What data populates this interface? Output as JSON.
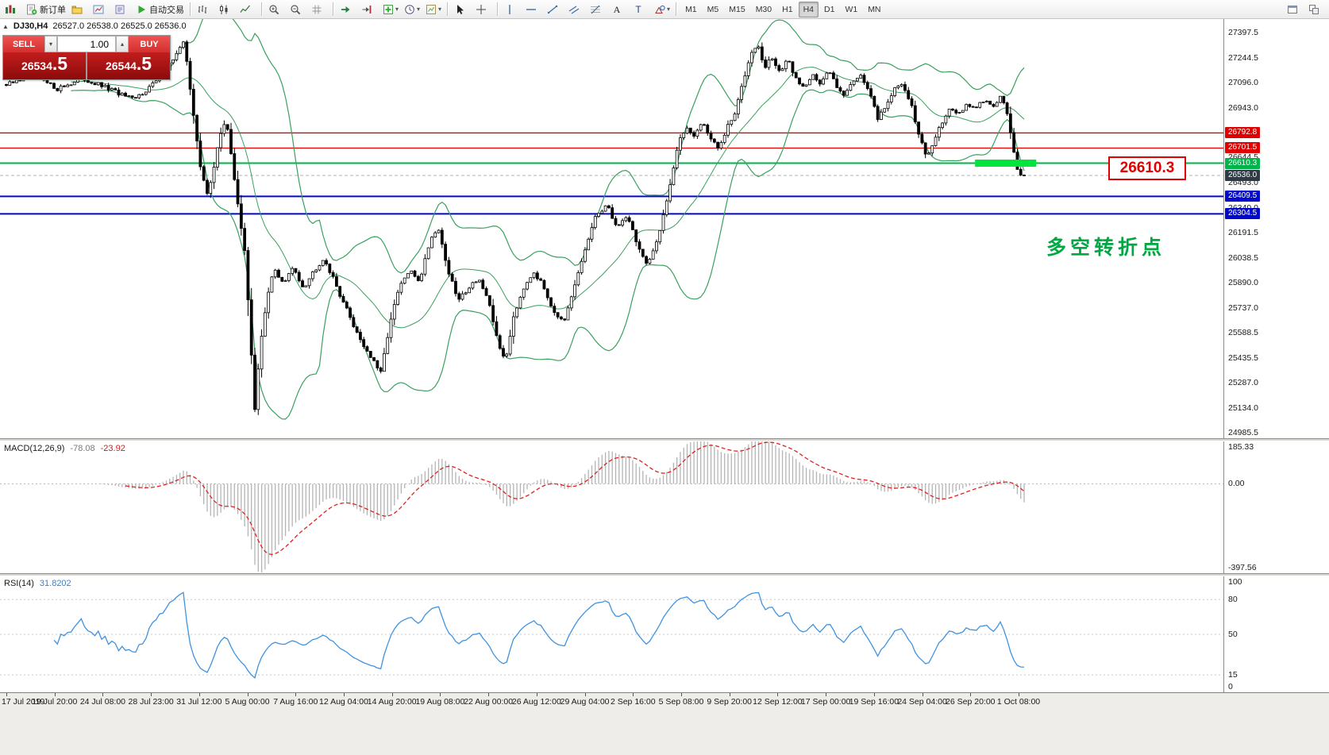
{
  "colors": {
    "candle": "#000000",
    "bollinger": "#3aa05e",
    "macd_hist": "#b4b4b4",
    "macd_signal": "#e02020",
    "rsi_line": "#3f93e0",
    "red_level": "#e00000",
    "green_level": "#00b44a",
    "blue_level": "#0008cc",
    "highlight_green": "#00e53c",
    "current_badge_bg": "#2e3a46",
    "accent_red": "#d32f2f"
  },
  "toolbar": {
    "items": [
      {
        "type": "icon",
        "icon": "new-chart",
        "name": "new-chart-button"
      },
      {
        "type": "icon",
        "icon": "new-order",
        "name": "new-order-button",
        "label": "新订单"
      },
      {
        "type": "icon",
        "icon": "profiles",
        "name": "profiles-button"
      },
      {
        "type": "icon",
        "icon": "market-watch",
        "name": "market-watch-button"
      },
      {
        "type": "icon",
        "icon": "navigator",
        "name": "navigator-button"
      },
      {
        "type": "icon",
        "icon": "autotrade",
        "name": "autotrade-button",
        "label": "自动交易"
      },
      {
        "type": "sep"
      },
      {
        "type": "icon",
        "icon": "bars",
        "name": "bar-chart-button"
      },
      {
        "type": "icon",
        "icon": "candles",
        "name": "candlestick-chart-button"
      },
      {
        "type": "icon",
        "icon": "linechart",
        "name": "line-chart-button"
      },
      {
        "type": "sep"
      },
      {
        "type": "icon",
        "icon": "zoom-in",
        "name": "zoom-in-button"
      },
      {
        "type": "icon",
        "icon": "zoom-out",
        "name": "zoom-out-button"
      },
      {
        "type": "icon",
        "icon": "grid",
        "name": "grid-button"
      },
      {
        "type": "sep"
      },
      {
        "type": "icon",
        "icon": "autoscroll",
        "name": "auto-scroll-button"
      },
      {
        "type": "icon",
        "icon": "shift",
        "name": "chart-shift-button"
      },
      {
        "type": "icon",
        "icon": "indicators",
        "name": "indicators-button",
        "caret": true
      },
      {
        "type": "icon",
        "icon": "clock",
        "name": "periods-button",
        "caret": true
      },
      {
        "type": "icon",
        "icon": "template",
        "name": "templates-button",
        "caret": true
      },
      {
        "type": "sep"
      },
      {
        "type": "icon",
        "icon": "cursor",
        "name": "cursor-tool-button"
      },
      {
        "type": "icon",
        "icon": "crosshair",
        "name": "crosshair-tool-button"
      },
      {
        "type": "sep"
      },
      {
        "type": "icon",
        "icon": "vline",
        "name": "vertical-line-tool"
      },
      {
        "type": "icon",
        "icon": "hline",
        "name": "horizontal-line-tool"
      },
      {
        "type": "icon",
        "icon": "tline",
        "name": "trendline-tool"
      },
      {
        "type": "icon",
        "icon": "channel",
        "name": "channel-tool"
      },
      {
        "type": "icon",
        "icon": "fibo",
        "name": "fibonacci-tool"
      },
      {
        "type": "icon",
        "icon": "text",
        "name": "text-tool"
      },
      {
        "type": "icon",
        "icon": "label",
        "name": "label-tool"
      },
      {
        "type": "icon",
        "icon": "shapes",
        "name": "shapes-tool",
        "caret": true
      },
      {
        "type": "sep"
      },
      {
        "type": "tf",
        "label": "M1",
        "name": "timeframe-m1"
      },
      {
        "type": "tf",
        "label": "M5",
        "name": "timeframe-m5"
      },
      {
        "type": "tf",
        "label": "M15",
        "name": "timeframe-m15"
      },
      {
        "type": "tf",
        "label": "M30",
        "name": "timeframe-m30"
      },
      {
        "type": "tf",
        "label": "H1",
        "name": "timeframe-h1"
      },
      {
        "type": "tf",
        "label": "H4",
        "name": "timeframe-h4",
        "active": true
      },
      {
        "type": "tf",
        "label": "D1",
        "name": "timeframe-d1"
      },
      {
        "type": "tf",
        "label": "W1",
        "name": "timeframe-w1"
      },
      {
        "type": "tf",
        "label": "MN",
        "name": "timeframe-mn"
      },
      {
        "type": "spacer"
      },
      {
        "type": "icon",
        "icon": "win-a",
        "name": "toolbar-extra-1"
      },
      {
        "type": "icon",
        "icon": "win-b",
        "name": "toolbar-extra-2"
      }
    ]
  },
  "symbol_bar": {
    "expand_icon": "▲",
    "title": "DJ30,H4",
    "ohlc": "26527.0 26538.0 26525.0 26536.0"
  },
  "trade_panel": {
    "sell_label": "SELL",
    "buy_label": "BUY",
    "volume": "1.00",
    "vol_down_icon": "▾",
    "vol_up_icon": "▴",
    "sell_price_main": "26534",
    "sell_price_frac": ".5",
    "buy_price_main": "26544",
    "buy_price_frac": ".5"
  },
  "callout": {
    "text": "26610.3"
  },
  "annotation": {
    "text": "多空转折点"
  },
  "price_axis": {
    "labels": [
      {
        "t": "27397.5",
        "v": 27397.5
      },
      {
        "t": "27244.5",
        "v": 27244.5
      },
      {
        "t": "27096.0",
        "v": 27096.0
      },
      {
        "t": "26943.0",
        "v": 26943.0
      },
      {
        "t": "26644.5",
        "v": 26644.5
      },
      {
        "t": "26493.0",
        "v": 26493.0
      },
      {
        "t": "26340.0",
        "v": 26340.0
      },
      {
        "t": "26191.5",
        "v": 26191.5
      },
      {
        "t": "26038.5",
        "v": 26038.5
      },
      {
        "t": "25890.0",
        "v": 25890.0
      },
      {
        "t": "25737.0",
        "v": 25737.0
      },
      {
        "t": "25588.5",
        "v": 25588.5
      },
      {
        "t": "25435.5",
        "v": 25435.5
      },
      {
        "t": "25287.0",
        "v": 25287.0
      },
      {
        "t": "25134.0",
        "v": 25134.0
      },
      {
        "t": "24985.5",
        "v": 24985.5
      }
    ]
  },
  "macd": {
    "name": "MACD(12,26,9)",
    "value1": "-78.08",
    "value2": "-23.92",
    "axis": [
      {
        "t": "185.33",
        "v": 185.33
      },
      {
        "t": "0.00",
        "v": 0
      },
      {
        "t": "-397.56",
        "v": -397.56
      }
    ],
    "range": [
      -400,
      190
    ],
    "period_fast": 12,
    "period_slow": 26,
    "period_signal": 9
  },
  "rsi": {
    "name": "RSI(14)",
    "value": "31.8202",
    "period": 14,
    "axis": [
      {
        "t": "100",
        "v": 100
      },
      {
        "t": "80",
        "v": 80
      },
      {
        "t": "50",
        "v": 50
      },
      {
        "t": "15",
        "v": 15
      },
      {
        "t": "0",
        "v": 0
      }
    ],
    "levels": [
      80,
      50,
      15
    ]
  },
  "time_axis": [
    "17 Jul 2019",
    "19 Jul 20:00",
    "24 Jul 08:00",
    "28 Jul 23:00",
    "31 Jul 12:00",
    "5 Aug 00:00",
    "7 Aug 16:00",
    "12 Aug 04:00",
    "14 Aug 20:00",
    "19 Aug 08:00",
    "22 Aug 00:00",
    "26 Aug 12:00",
    "29 Aug 04:00",
    "2 Sep 16:00",
    "5 Sep 08:00",
    "9 Sep 20:00",
    "12 Sep 12:00",
    "17 Sep 00:00",
    "19 Sep 16:00",
    "24 Sep 04:00",
    "26 Sep 20:00",
    "1 Oct 08:00"
  ],
  "chart_data": {
    "type": "candlestick",
    "symbol": "DJ30",
    "timeframe": "H4",
    "price_range": [
      24950,
      27480
    ],
    "num_candles": 300,
    "last_close": 26536.0,
    "bollinger": {
      "period": 20,
      "deviation": 2
    },
    "anchors": [
      [
        0,
        27080
      ],
      [
        0.025,
        27140
      ],
      [
        0.05,
        27060
      ],
      [
        0.075,
        27120
      ],
      [
        0.1,
        27060
      ],
      [
        0.125,
        26990
      ],
      [
        0.15,
        27120
      ],
      [
        0.165,
        27250
      ],
      [
        0.175,
        27340
      ],
      [
        0.183,
        26950
      ],
      [
        0.19,
        26600
      ],
      [
        0.197,
        26430
      ],
      [
        0.203,
        26550
      ],
      [
        0.21,
        26780
      ],
      [
        0.216,
        26880
      ],
      [
        0.222,
        26600
      ],
      [
        0.228,
        26350
      ],
      [
        0.234,
        26080
      ],
      [
        0.239,
        25650
      ],
      [
        0.244,
        25120
      ],
      [
        0.249,
        25480
      ],
      [
        0.256,
        25780
      ],
      [
        0.263,
        25980
      ],
      [
        0.272,
        25880
      ],
      [
        0.282,
        25980
      ],
      [
        0.292,
        25860
      ],
      [
        0.302,
        25960
      ],
      [
        0.312,
        26040
      ],
      [
        0.322,
        25900
      ],
      [
        0.332,
        25760
      ],
      [
        0.342,
        25620
      ],
      [
        0.352,
        25500
      ],
      [
        0.362,
        25400
      ],
      [
        0.368,
        25340
      ],
      [
        0.376,
        25620
      ],
      [
        0.386,
        25860
      ],
      [
        0.396,
        25960
      ],
      [
        0.406,
        25900
      ],
      [
        0.416,
        26140
      ],
      [
        0.424,
        26230
      ],
      [
        0.434,
        25960
      ],
      [
        0.444,
        25780
      ],
      [
        0.454,
        25860
      ],
      [
        0.464,
        25920
      ],
      [
        0.474,
        25760
      ],
      [
        0.482,
        25560
      ],
      [
        0.49,
        25400
      ],
      [
        0.498,
        25680
      ],
      [
        0.508,
        25860
      ],
      [
        0.518,
        25960
      ],
      [
        0.528,
        25860
      ],
      [
        0.538,
        25720
      ],
      [
        0.548,
        25640
      ],
      [
        0.558,
        25860
      ],
      [
        0.57,
        26120
      ],
      [
        0.58,
        26300
      ],
      [
        0.59,
        26360
      ],
      [
        0.6,
        26220
      ],
      [
        0.61,
        26300
      ],
      [
        0.62,
        26120
      ],
      [
        0.63,
        25980
      ],
      [
        0.64,
        26160
      ],
      [
        0.65,
        26420
      ],
      [
        0.66,
        26720
      ],
      [
        0.668,
        26830
      ],
      [
        0.676,
        26780
      ],
      [
        0.684,
        26860
      ],
      [
        0.692,
        26760
      ],
      [
        0.7,
        26690
      ],
      [
        0.708,
        26820
      ],
      [
        0.716,
        26910
      ],
      [
        0.724,
        27110
      ],
      [
        0.732,
        27290
      ],
      [
        0.738,
        27330
      ],
      [
        0.745,
        27180
      ],
      [
        0.752,
        27250
      ],
      [
        0.76,
        27160
      ],
      [
        0.768,
        27230
      ],
      [
        0.776,
        27120
      ],
      [
        0.784,
        27060
      ],
      [
        0.792,
        27160
      ],
      [
        0.8,
        27080
      ],
      [
        0.808,
        27170
      ],
      [
        0.816,
        27080
      ],
      [
        0.824,
        27020
      ],
      [
        0.832,
        27110
      ],
      [
        0.84,
        27150
      ],
      [
        0.848,
        27030
      ],
      [
        0.856,
        26880
      ],
      [
        0.864,
        26960
      ],
      [
        0.872,
        27050
      ],
      [
        0.88,
        27090
      ],
      [
        0.888,
        26990
      ],
      [
        0.896,
        26790
      ],
      [
        0.904,
        26640
      ],
      [
        0.912,
        26760
      ],
      [
        0.92,
        26870
      ],
      [
        0.928,
        26950
      ],
      [
        0.936,
        26900
      ],
      [
        0.944,
        26970
      ],
      [
        0.952,
        26930
      ],
      [
        0.96,
        26990
      ],
      [
        0.968,
        26950
      ],
      [
        0.976,
        27010
      ],
      [
        0.982,
        26960
      ],
      [
        0.987,
        26780
      ],
      [
        0.993,
        26560
      ],
      [
        1,
        26536
      ]
    ],
    "h_lines": [
      {
        "price": 26792.8,
        "badge": "26792.8",
        "color": "#e00000",
        "width": 1.3,
        "kind": "resistance"
      },
      {
        "price": 26701.5,
        "badge": "26701.5",
        "color": "#e00000",
        "width": 1.3,
        "kind": "resistance"
      },
      {
        "price": 26610.3,
        "badge": "26610.3",
        "color": "#00b44a",
        "width": 2,
        "kind": "pivot"
      },
      {
        "price": 26409.5,
        "badge": "26409.5",
        "color": "#0008cc",
        "width": 2,
        "kind": "support"
      },
      {
        "price": 26304.5,
        "badge": "26304.5",
        "color": "#0008cc",
        "width": 2,
        "kind": "support"
      }
    ],
    "highlight": {
      "price": 26610.3,
      "x0_frac": 0.797,
      "x1_frac": 0.847,
      "thickness": 9,
      "color": "#00e53c"
    },
    "current_price": {
      "value": 26536.0,
      "badge": "26536.0"
    }
  }
}
